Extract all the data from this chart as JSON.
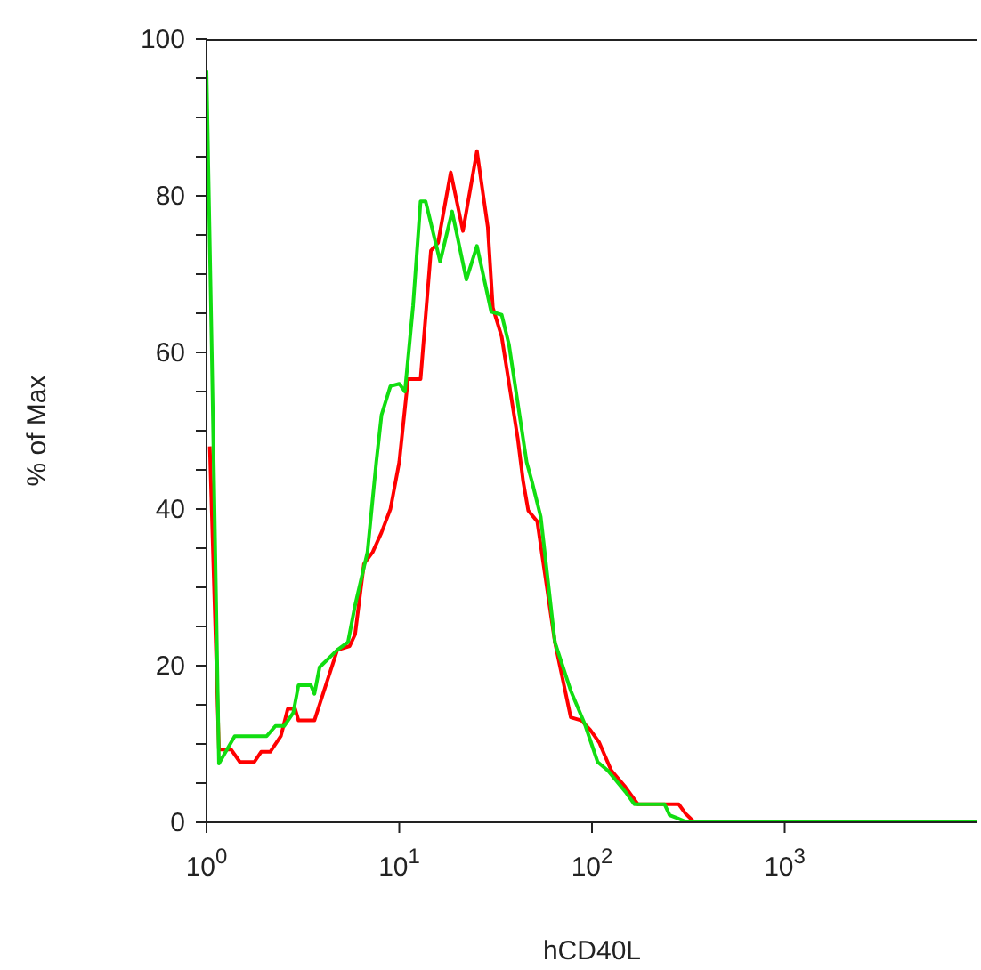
{
  "chart_data": {
    "type": "line",
    "xlabel": "hCD40L",
    "ylabel": "% of Max",
    "log": "x",
    "xlim": [
      1,
      10000
    ],
    "xticks": [
      {
        "value": 1,
        "label": "10$^{0}$"
      },
      {
        "value": 10,
        "label": "10$^{1}$"
      },
      {
        "value": 100,
        "label": "10$^{2}$"
      },
      {
        "value": 1000,
        "label": "10$^{3}$"
      }
    ],
    "ylim": [
      0,
      100
    ],
    "yticks": [
      0,
      {
        "value": 5,
        "label": null
      },
      {
        "value": 10,
        "label": null
      },
      {
        "value": 15,
        "label": null
      },
      20,
      {
        "value": 25,
        "label": null
      },
      {
        "value": 30,
        "label": null
      },
      {
        "value": 35,
        "label": null
      },
      40,
      {
        "value": 45,
        "label": null
      },
      {
        "value": 50,
        "label": null
      },
      {
        "value": 55,
        "label": null
      },
      60,
      {
        "value": 65,
        "label": null
      },
      {
        "value": 70,
        "label": null
      },
      {
        "value": 75,
        "label": null
      },
      80,
      {
        "value": 85,
        "label": null
      },
      {
        "value": 90,
        "label": null
      },
      {
        "value": 95,
        "label": null
      },
      100
    ],
    "grid": false,
    "marker": "none",
    "line_style": "solid",
    "series": [
      {
        "color": "#ff0000",
        "x": [
          1.04,
          1.16,
          1.34,
          1.49,
          1.77,
          1.92,
          2.14,
          2.43,
          2.64,
          2.88,
          3.0,
          3.63,
          4.3,
          4.77,
          5.53,
          5.9,
          6.56,
          7.28,
          8.09,
          9.0,
          10,
          11.1,
          12.9,
          14.6,
          15.9,
          18.5,
          21.4,
          25.3,
          28.8,
          30.6,
          34.0,
          41.2,
          43.9,
          46.7,
          52.0,
          64.2,
          77.6,
          88.1,
          97.9,
          109,
          126,
          149,
          173,
          282,
          306,
          340,
          10000
        ],
        "values": [
          48,
          9.3,
          9.3,
          7.7,
          7.7,
          9,
          9,
          11,
          14.5,
          14.5,
          13,
          13,
          18.6,
          22,
          22.5,
          24,
          33,
          34.5,
          37,
          40,
          46,
          56.6,
          56.6,
          73,
          74,
          83,
          75.5,
          85.7,
          76,
          65.7,
          62,
          49,
          43.6,
          39.8,
          38.4,
          23,
          13.4,
          13,
          11.8,
          10.2,
          6.6,
          4.5,
          2.3,
          2.3,
          1.1,
          0,
          0
        ]
      },
      {
        "color": "#11dd11",
        "x": [
          1,
          1.065,
          1.16,
          1.4,
          2.05,
          2.28,
          2.53,
          2.82,
          3.0,
          3.48,
          3.63,
          3.86,
          4.77,
          5.42,
          5.9,
          6.84,
          7.6,
          8.09,
          9.0,
          10,
          10.7,
          11.8,
          12.9,
          13.7,
          16.3,
          18.8,
          22.3,
          25.3,
          30.0,
          34.0,
          37.1,
          45.8,
          48.7,
          54.2,
          64.2,
          77.6,
          91.9,
          107,
          121,
          149,
          166,
          238,
          253,
          313,
          10000
        ],
        "values": [
          96,
          60,
          7.5,
          11,
          11,
          12.3,
          12.3,
          14,
          17.5,
          17.5,
          16.4,
          19.8,
          22,
          23,
          27.7,
          34.5,
          46,
          52,
          55.7,
          56,
          55,
          66,
          79.3,
          79.3,
          71.6,
          78,
          69.3,
          73.6,
          65.2,
          64.8,
          61,
          46,
          43.6,
          39,
          23,
          16.8,
          12.5,
          7.7,
          6.6,
          3.9,
          2.3,
          2.3,
          0.9,
          0,
          0
        ]
      }
    ]
  }
}
